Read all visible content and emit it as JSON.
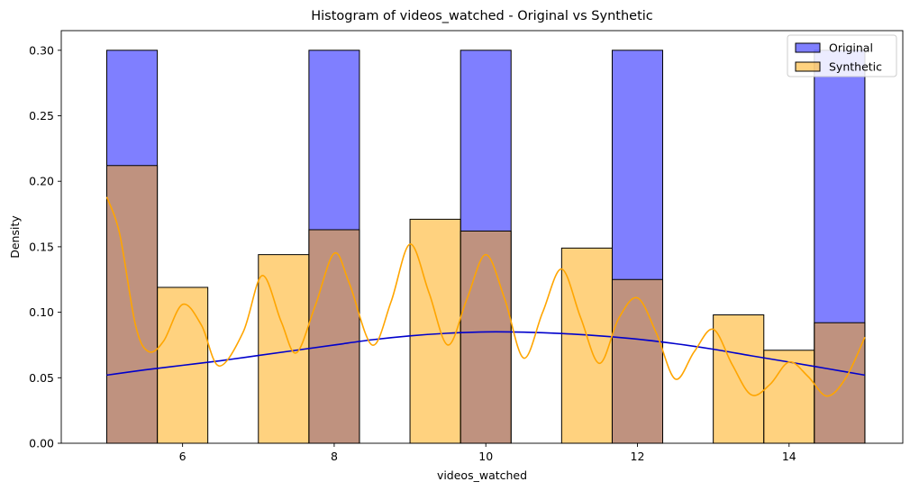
{
  "chart_data": {
    "type": "bar",
    "title": "Histogram of videos_watched - Original vs Synthetic",
    "xlabel": "videos_watched",
    "ylabel": "Density",
    "xlim": [
      4.4,
      15.5
    ],
    "ylim": [
      0,
      0.315
    ],
    "xticks": [
      6,
      8,
      10,
      12,
      14
    ],
    "yticks": [
      0.0,
      0.05,
      0.1,
      0.15,
      0.2,
      0.25,
      0.3
    ],
    "ytick_labels": [
      "0.00",
      "0.05",
      "0.10",
      "0.15",
      "0.20",
      "0.25",
      "0.30"
    ],
    "grid": false,
    "legend_position": "top-right",
    "bin_edges": [
      5.0,
      5.667,
      6.333,
      7.0,
      7.667,
      8.333,
      9.0,
      9.667,
      10.333,
      11.0,
      11.667,
      12.333,
      13.0,
      13.667,
      14.333,
      15.0
    ],
    "series": [
      {
        "name": "Original",
        "color": "#0000ff",
        "fill_opacity": 0.5,
        "values": [
          0.3,
          0,
          0,
          0,
          0.3,
          0,
          0,
          0.3,
          0,
          0,
          0.3,
          0,
          0,
          0,
          0.3
        ],
        "kde": {
          "color": "#0000cc",
          "x": [
            5.0,
            5.5,
            6.0,
            6.5,
            7.0,
            7.5,
            8.0,
            8.5,
            9.0,
            9.5,
            10.0,
            10.5,
            11.0,
            11.5,
            12.0,
            12.5,
            13.0,
            13.5,
            14.0,
            14.5,
            15.0
          ],
          "y": [
            0.052,
            0.056,
            0.0595,
            0.063,
            0.067,
            0.071,
            0.075,
            0.079,
            0.082,
            0.084,
            0.085,
            0.0848,
            0.0838,
            0.082,
            0.0795,
            0.076,
            0.0718,
            0.0668,
            0.062,
            0.057,
            0.052
          ]
        }
      },
      {
        "name": "Synthetic",
        "color": "#ffa500",
        "fill_opacity": 0.5,
        "values": [
          0.212,
          0.119,
          0,
          0.144,
          0.163,
          0,
          0.171,
          0.162,
          0,
          0.149,
          0.125,
          0,
          0.098,
          0.071,
          0.092
        ],
        "kde": {
          "color": "#ffa500",
          "x": [
            5.0,
            5.17,
            5.38,
            5.55,
            5.75,
            6.0,
            6.25,
            6.48,
            6.8,
            7.05,
            7.3,
            7.5,
            7.75,
            8.0,
            8.2,
            8.5,
            8.75,
            9.0,
            9.25,
            9.5,
            9.75,
            10.0,
            10.25,
            10.5,
            10.75,
            11.0,
            11.25,
            11.5,
            11.75,
            12.0,
            12.25,
            12.5,
            12.75,
            13.0,
            13.25,
            13.5,
            13.75,
            14.0,
            14.25,
            14.5,
            14.75,
            15.0
          ],
          "y": [
            0.188,
            0.16,
            0.09,
            0.07,
            0.078,
            0.106,
            0.09,
            0.059,
            0.085,
            0.128,
            0.093,
            0.069,
            0.105,
            0.145,
            0.122,
            0.075,
            0.108,
            0.152,
            0.115,
            0.075,
            0.11,
            0.144,
            0.11,
            0.065,
            0.1,
            0.133,
            0.096,
            0.061,
            0.095,
            0.111,
            0.084,
            0.049,
            0.07,
            0.087,
            0.06,
            0.037,
            0.045,
            0.062,
            0.051,
            0.036,
            0.05,
            0.081
          ]
        }
      }
    ]
  }
}
